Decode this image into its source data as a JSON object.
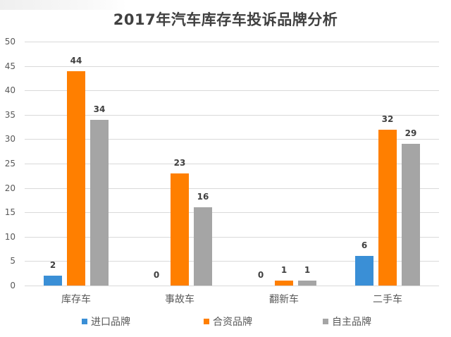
{
  "chart_data": {
    "type": "bar",
    "title": "2017年汽车库存车投诉品牌分析",
    "categories": [
      "库存车",
      "事故车",
      "翻新车",
      "二手车"
    ],
    "series": [
      {
        "name": "进口品牌",
        "color": "#3a8fd6",
        "values": [
          2,
          0,
          0,
          6
        ]
      },
      {
        "name": "合资品牌",
        "color": "#ff7f00",
        "values": [
          44,
          23,
          1,
          32
        ]
      },
      {
        "name": "自主品牌",
        "color": "#a5a5a5",
        "values": [
          34,
          16,
          1,
          29
        ]
      }
    ],
    "xlabel": "",
    "ylabel": "",
    "ylim": [
      0,
      50
    ],
    "yticks": [
      0,
      5,
      10,
      15,
      20,
      25,
      30,
      35,
      40,
      45,
      50
    ],
    "grid": true,
    "legend_position": "bottom",
    "data_labels": true
  },
  "labels": {
    "title": "2017年汽车库存车投诉品牌分析",
    "yticks": [
      "0",
      "5",
      "10",
      "15",
      "20",
      "25",
      "30",
      "35",
      "40",
      "45",
      "50"
    ],
    "categories": [
      "库存车",
      "事故车",
      "翻新车",
      "二手车"
    ],
    "legend": [
      "进口品牌",
      "合资品牌",
      "自主品牌"
    ],
    "bar_values": [
      [
        "2",
        "44",
        "34"
      ],
      [
        "0",
        "23",
        "16"
      ],
      [
        "0",
        "1",
        "1"
      ],
      [
        "6",
        "32",
        "29"
      ]
    ]
  }
}
